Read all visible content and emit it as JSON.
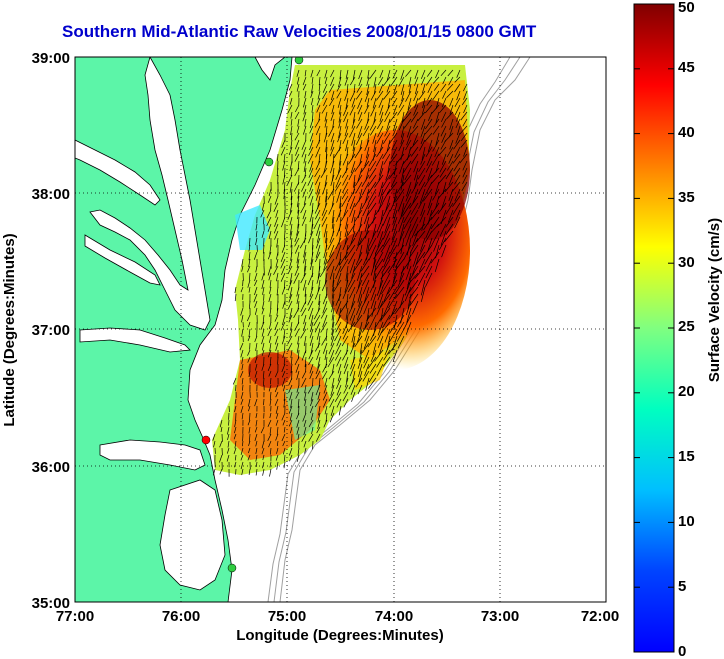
{
  "title": "Southern Mid-Atlantic Raw Velocities 2008/01/15 0800 GMT",
  "x_axis": {
    "label": "Longitude (Degrees:Minutes)",
    "ticks": [
      "77:00",
      "76:00",
      "75:00",
      "74:00",
      "73:00",
      "72:00"
    ],
    "range": [
      -77,
      -72
    ]
  },
  "y_axis": {
    "label": "Latitude (Degrees:Minutes)",
    "ticks": [
      "39:00",
      "38:00",
      "37:00",
      "36:00",
      "35:00"
    ],
    "range": [
      35,
      39
    ]
  },
  "colorbar": {
    "label": "Surface Velocity (cm/s)",
    "ticks": [
      "0",
      "5",
      "10",
      "15",
      "20",
      "25",
      "30",
      "35",
      "40",
      "45",
      "50"
    ],
    "range": [
      0,
      50
    ],
    "colormap": "jet"
  },
  "colors": {
    "land": "#5cf5a8",
    "water": "#ffffff",
    "coastline": "#000000",
    "bathymetry": "#a0a0a0",
    "title": "#0000cc",
    "station_active": "#2ecc40",
    "station_alert": "#ff0000"
  },
  "grid": "dotted"
}
